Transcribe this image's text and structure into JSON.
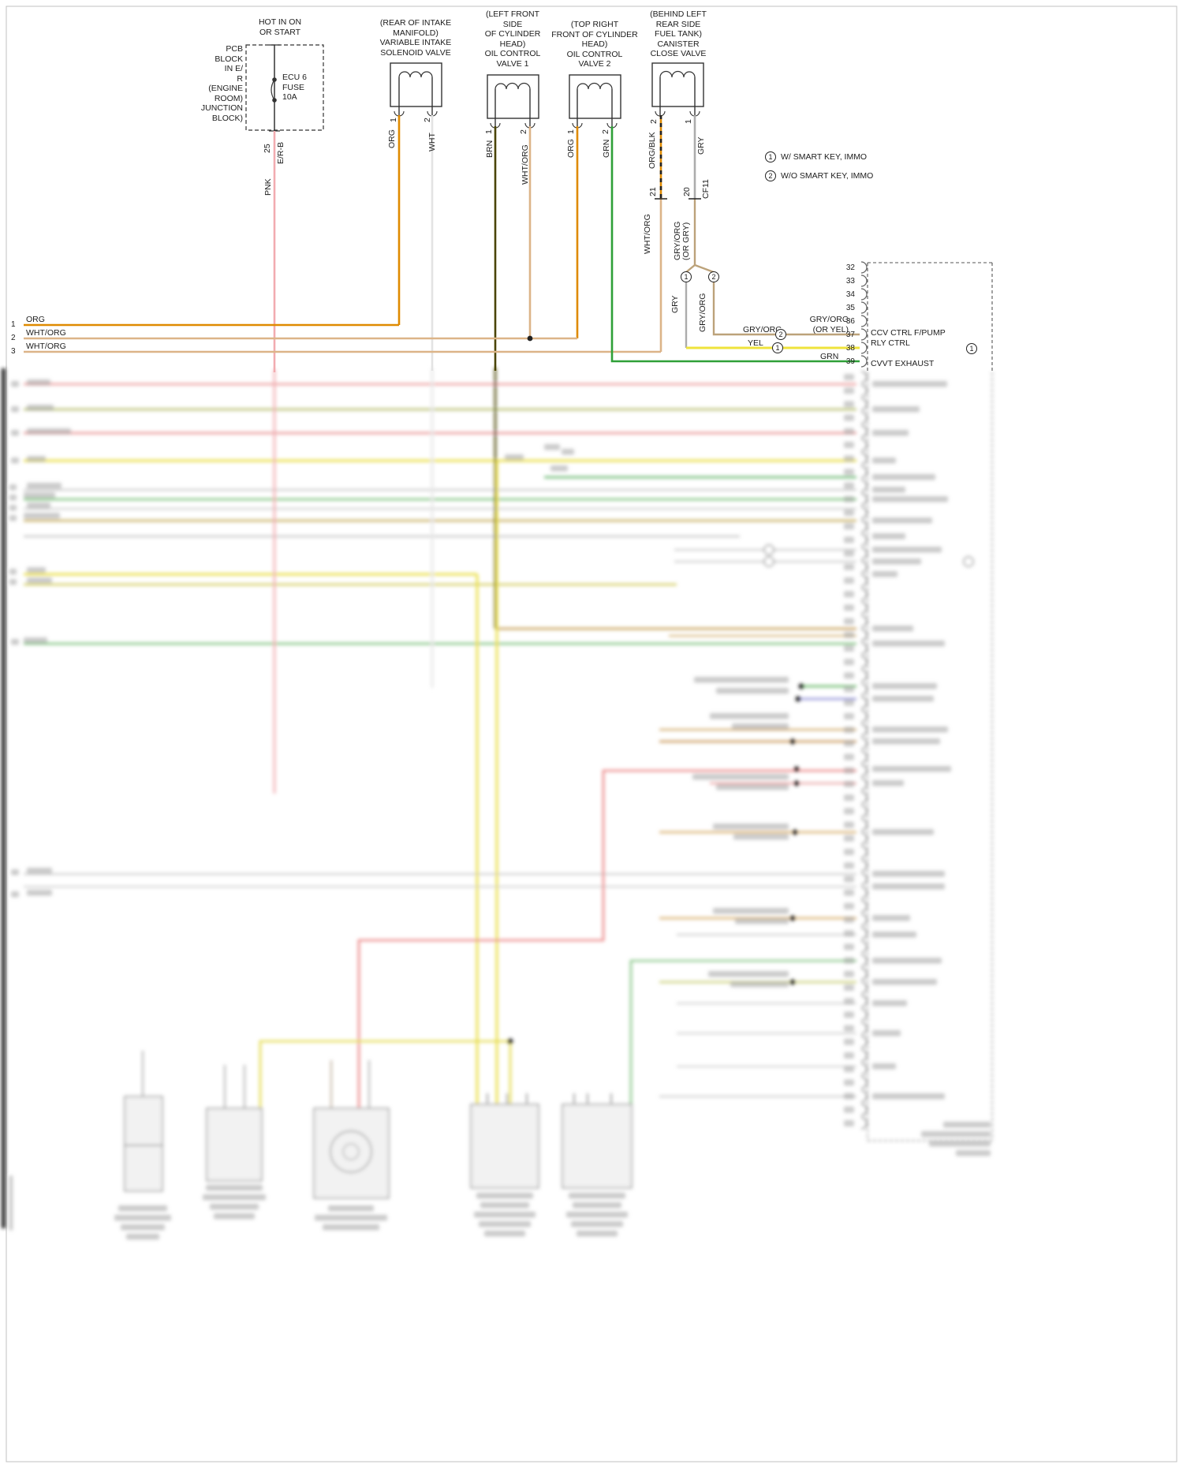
{
  "power": {
    "hot": "HOT IN ON\nOR START",
    "junction": "PCB\nBLOCK\nIN E/\nR\n(ENGINE\nROOM) JUNCTION\nBLOCK)",
    "fuse": "ECU 6\nFUSE\n10A",
    "pin": "25",
    "connector": "E/R-B",
    "wire": "PNK"
  },
  "valves": [
    {
      "caption": "(REAR OF INTAKE\nMANIFOLD)\nVARIABLE INTAKE\nSOLENOID VALVE",
      "pinL": "1",
      "pinR": "2",
      "wireL": "ORG",
      "wireR": "WHT"
    },
    {
      "caption": "(LEFT FRONT\nSIDE\nOF CYLINDER\nHEAD)\nOIL CONTROL\nVALVE 1",
      "pinL": "1",
      "pinR": "2",
      "wireL": "BRN",
      "wireR": "WHT/ORG"
    },
    {
      "caption": "(TOP RIGHT\nFRONT OF CYLINDER\nHEAD)\nOIL CONTROL\nVALVE 2",
      "pinL": "1",
      "pinR": "2",
      "wireL": "ORG",
      "wireR": "GRN"
    },
    {
      "caption": "(BEHIND LEFT\nREAR SIDE\nFUEL TANK)\nCANISTER\nCLOSE VALVE",
      "pinL": "2",
      "pinR": "1",
      "wireL": "ORG/BLK",
      "wireR": "GRY"
    }
  ],
  "inline_connector": {
    "pin_left": "21",
    "pin_right": "20",
    "name": "CF11",
    "wire_left": "WHT/ORG",
    "wire_right": "GRY/ORG\n(OR GRY)",
    "branch1": "1",
    "branch2": "2",
    "branch1_wire": "GRY",
    "branch2_wire": "GRY/ORG"
  },
  "legend": [
    {
      "num": "1",
      "text": "W/ SMART KEY, IMMO"
    },
    {
      "num": "2",
      "text": "W/O SMART KEY, IMMO"
    }
  ],
  "left_wires": [
    {
      "num": "1",
      "label": "ORG"
    },
    {
      "num": "2",
      "label": "WHT/ORG"
    },
    {
      "num": "3",
      "label": "WHT/ORG"
    }
  ],
  "ecm": {
    "pins": [
      "32",
      "33",
      "34",
      "35",
      "36",
      "37",
      "38",
      "39"
    ],
    "wire37_label": "GRY/ORG",
    "wire37_alt": "GRY/ORG\n(OR YEL)",
    "wire37_mark": "2",
    "wire38_label": "YEL",
    "wire38_mark": "1",
    "wire39_label": "GRN",
    "row_37_38": "CCV CTRL F/PUMP\nRLY CTRL",
    "row_37_38_mark": "1",
    "row_39": "CVVT EXHAUST"
  },
  "colors": {
    "org": "#DF8A00",
    "pnk": "#F2ACB0",
    "wht": "#E3E3E3",
    "brn": "#4A4400",
    "grn": "#2FA038",
    "gry": "#ACACAC",
    "wht_org": "#DCB488",
    "gry_org": "#BCA27A",
    "yel": "#EFE33C",
    "red": "#EC8888"
  }
}
